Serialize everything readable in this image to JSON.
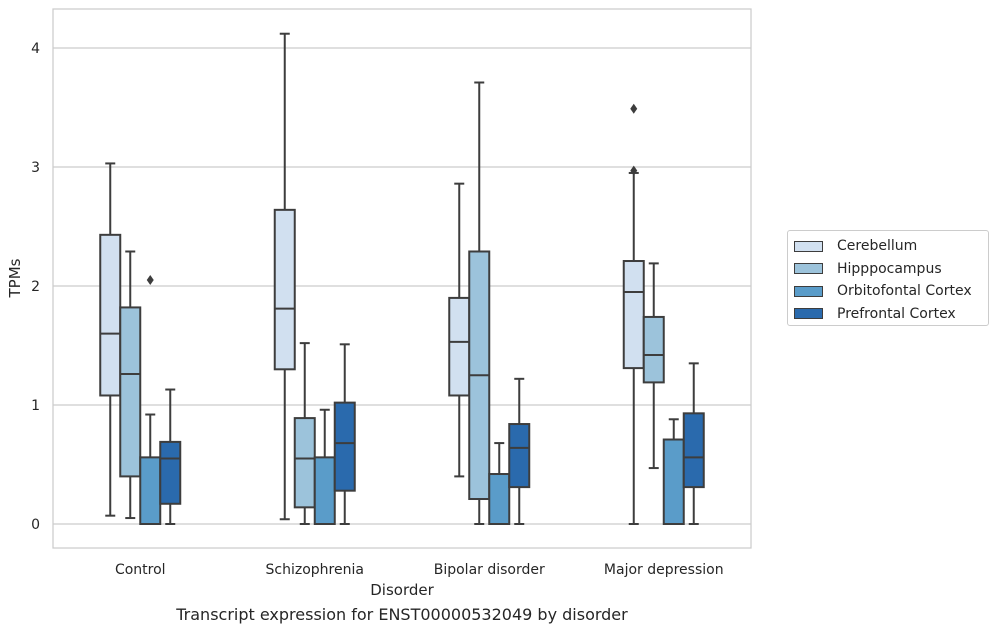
{
  "caption": "Transcript expression for ENST00000532049 by disorder",
  "chart_data": {
    "type": "boxplot",
    "xlabel": "Disorder",
    "ylabel": "TPMs",
    "ylim": [
      -0.2,
      4.3
    ],
    "yticks": [
      0,
      1,
      2,
      3,
      4
    ],
    "grid": true,
    "legend_position": "right",
    "categories": [
      "Control",
      "Schizophrenia",
      "Bipolar disorder",
      "Major depression"
    ],
    "series": [
      {
        "name": "Cerebellum",
        "color": "#d1e0f0",
        "boxes": [
          {
            "whisker_low": 0.07,
            "q1": 1.08,
            "median": 1.6,
            "q3": 2.43,
            "whisker_high": 3.03,
            "outliers": []
          },
          {
            "whisker_low": 0.04,
            "q1": 1.3,
            "median": 1.81,
            "q3": 2.64,
            "whisker_high": 4.12,
            "outliers": []
          },
          {
            "whisker_low": 0.4,
            "q1": 1.08,
            "median": 1.53,
            "q3": 1.9,
            "whisker_high": 2.86,
            "outliers": []
          },
          {
            "whisker_low": 0.0,
            "q1": 1.31,
            "median": 1.95,
            "q3": 2.21,
            "whisker_high": 2.95,
            "outliers": [
              3.49,
              2.97
            ]
          }
        ]
      },
      {
        "name": "Hipppocampus",
        "color": "#9cc3db",
        "boxes": [
          {
            "whisker_low": 0.05,
            "q1": 0.4,
            "median": 1.26,
            "q3": 1.82,
            "whisker_high": 2.29,
            "outliers": []
          },
          {
            "whisker_low": 0.0,
            "q1": 0.14,
            "median": 0.55,
            "q3": 0.89,
            "whisker_high": 1.52,
            "outliers": []
          },
          {
            "whisker_low": 0.0,
            "q1": 0.21,
            "median": 1.25,
            "q3": 2.29,
            "whisker_high": 3.71,
            "outliers": []
          },
          {
            "whisker_low": 0.47,
            "q1": 1.19,
            "median": 1.42,
            "q3": 1.74,
            "whisker_high": 2.19,
            "outliers": []
          }
        ]
      },
      {
        "name": "Orbitofontal Cortex",
        "color": "#5a9cc9",
        "boxes": [
          {
            "whisker_low": 0.0,
            "q1": 0.0,
            "median": 0.0,
            "q3": 0.56,
            "whisker_high": 0.92,
            "outliers": [
              2.05
            ]
          },
          {
            "whisker_low": 0.0,
            "q1": 0.0,
            "median": 0.0,
            "q3": 0.56,
            "whisker_high": 0.96,
            "outliers": []
          },
          {
            "whisker_low": 0.0,
            "q1": 0.0,
            "median": 0.0,
            "q3": 0.42,
            "whisker_high": 0.68,
            "outliers": []
          },
          {
            "whisker_low": 0.0,
            "q1": 0.0,
            "median": 0.0,
            "q3": 0.71,
            "whisker_high": 0.88,
            "outliers": []
          }
        ]
      },
      {
        "name": "Prefrontal Cortex",
        "color": "#2a6aad",
        "boxes": [
          {
            "whisker_low": 0.0,
            "q1": 0.17,
            "median": 0.55,
            "q3": 0.69,
            "whisker_high": 1.13,
            "outliers": []
          },
          {
            "whisker_low": 0.0,
            "q1": 0.28,
            "median": 0.68,
            "q3": 1.02,
            "whisker_high": 1.51,
            "outliers": []
          },
          {
            "whisker_low": 0.0,
            "q1": 0.31,
            "median": 0.64,
            "q3": 0.84,
            "whisker_high": 1.22,
            "outliers": []
          },
          {
            "whisker_low": 0.0,
            "q1": 0.31,
            "median": 0.56,
            "q3": 0.93,
            "whisker_high": 1.35,
            "outliers": []
          }
        ]
      }
    ]
  }
}
